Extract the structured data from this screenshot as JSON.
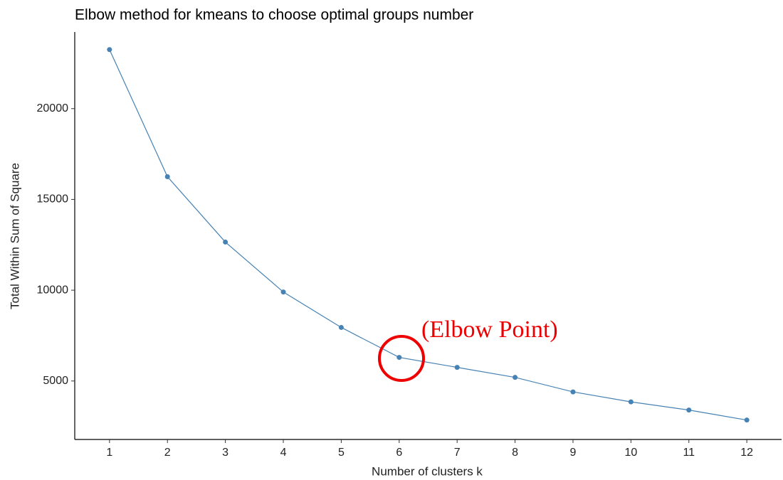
{
  "chart_data": {
    "type": "line",
    "title": "Elbow method for kmeans to choose optimal groups number",
    "x_label": "Number of clusters k",
    "y_label": "Total Within Sum of Square",
    "annotation": "(Elbow Point)",
    "x": [
      1,
      2,
      3,
      4,
      5,
      6,
      7,
      8,
      9,
      10,
      11,
      12
    ],
    "series": [
      {
        "name": "wss",
        "color": "#4682b4",
        "values": [
          23250,
          16250,
          12650,
          9900,
          7950,
          6300,
          5750,
          5200,
          4400,
          3850,
          3400,
          2850
        ]
      }
    ],
    "xlim": [
      0.4,
      12.6
    ],
    "xticks": [
      1,
      2,
      3,
      4,
      5,
      6,
      7,
      8,
      9,
      10,
      11,
      12
    ],
    "ylim": [
      1780,
      24220
    ],
    "yticks": [
      5000,
      10000,
      15000,
      20000
    ],
    "grid": false
  }
}
